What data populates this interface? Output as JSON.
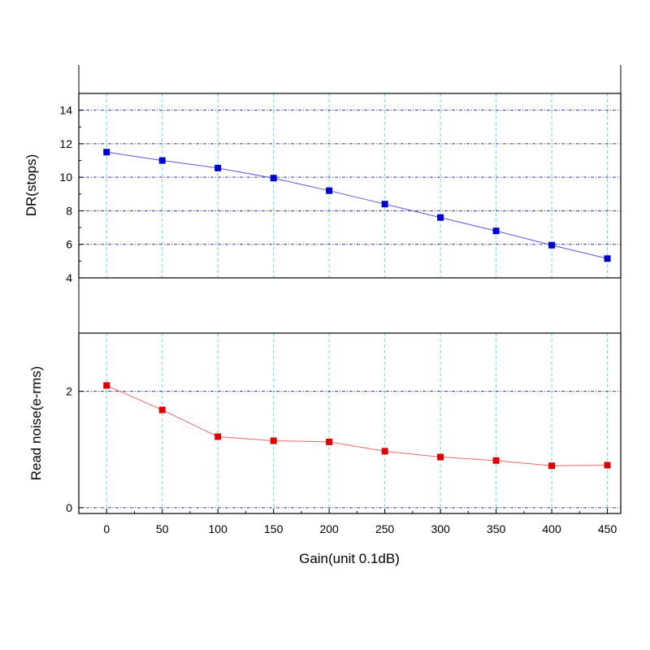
{
  "chart_data": [
    {
      "type": "line",
      "ylabel": "DR(stops)",
      "x": [
        0,
        50,
        100,
        150,
        200,
        250,
        300,
        350,
        400,
        450
      ],
      "series": [
        {
          "values": [
            11.5,
            11.0,
            10.55,
            9.95,
            9.2,
            8.4,
            7.6,
            6.8,
            5.95,
            5.15
          ],
          "color": "#0000cc",
          "line_color": "#5555dd",
          "marker": "square"
        }
      ],
      "xlim": [
        -25,
        462
      ],
      "ylim": [
        4,
        15
      ],
      "yticks": [
        4,
        6,
        8,
        10,
        12,
        14
      ],
      "ytick_labels": [
        "4",
        "6",
        "8",
        "10",
        "12",
        "14"
      ],
      "grid": true
    },
    {
      "type": "line",
      "ylabel": "Read noise(e-rms)",
      "xlabel": "Gain(unit 0.1dB)",
      "x": [
        0,
        50,
        100,
        150,
        200,
        250,
        300,
        350,
        400,
        450
      ],
      "series": [
        {
          "values": [
            2.1,
            1.68,
            1.22,
            1.15,
            1.13,
            0.97,
            0.87,
            0.81,
            0.72,
            0.73
          ],
          "color": "#dd0000",
          "line_color": "#ee6666",
          "marker": "square"
        }
      ],
      "xlim": [
        -25,
        462
      ],
      "xticks": [
        0,
        50,
        100,
        150,
        200,
        250,
        300,
        350,
        400,
        450
      ],
      "xtick_labels": [
        "0",
        "50",
        "100",
        "150",
        "200",
        "250",
        "300",
        "350",
        "400",
        "450"
      ],
      "ylim": [
        -0.1,
        3.0
      ],
      "yticks": [
        0,
        2
      ],
      "ytick_labels": [
        "0",
        "2"
      ],
      "grid": true
    }
  ],
  "colors": {
    "vertical_grid": "#66dddd",
    "horizontal_grid": "#3333bb",
    "frame": "#000000"
  }
}
